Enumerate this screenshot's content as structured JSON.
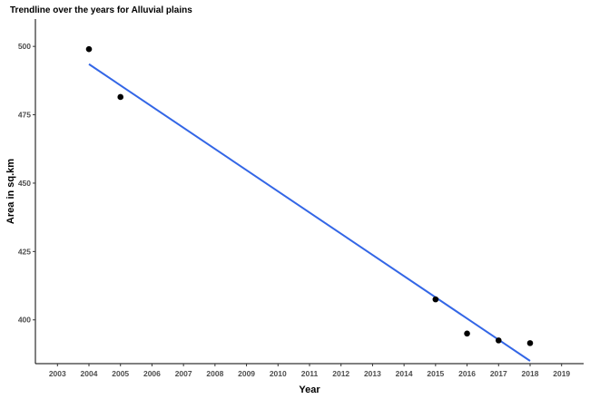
{
  "chart_data": {
    "type": "scatter",
    "title": "Trendline over the years for Alluvial plains",
    "xlabel": "Year",
    "ylabel": "Area in sq.km",
    "xlim": [
      2002.3,
      2019.7
    ],
    "ylim": [
      384,
      510
    ],
    "x_ticks": [
      "2003",
      "2004",
      "2005",
      "2006",
      "2007",
      "2008",
      "2009",
      "2010",
      "2011",
      "2012",
      "2013",
      "2014",
      "2015",
      "2016",
      "2017",
      "2018",
      "2019"
    ],
    "y_ticks": [
      400,
      425,
      450,
      475,
      500
    ],
    "grid": false,
    "series": [
      {
        "type": "scatter",
        "x": [
          2004,
          2005,
          2015,
          2016,
          2017,
          2018
        ],
        "y": [
          499,
          481.5,
          407.5,
          395,
          392.5,
          391.5
        ],
        "color": "#000000"
      },
      {
        "type": "line",
        "x": [
          2004,
          2018
        ],
        "y": [
          493.5,
          385
        ],
        "color": "#3366e6"
      }
    ]
  }
}
